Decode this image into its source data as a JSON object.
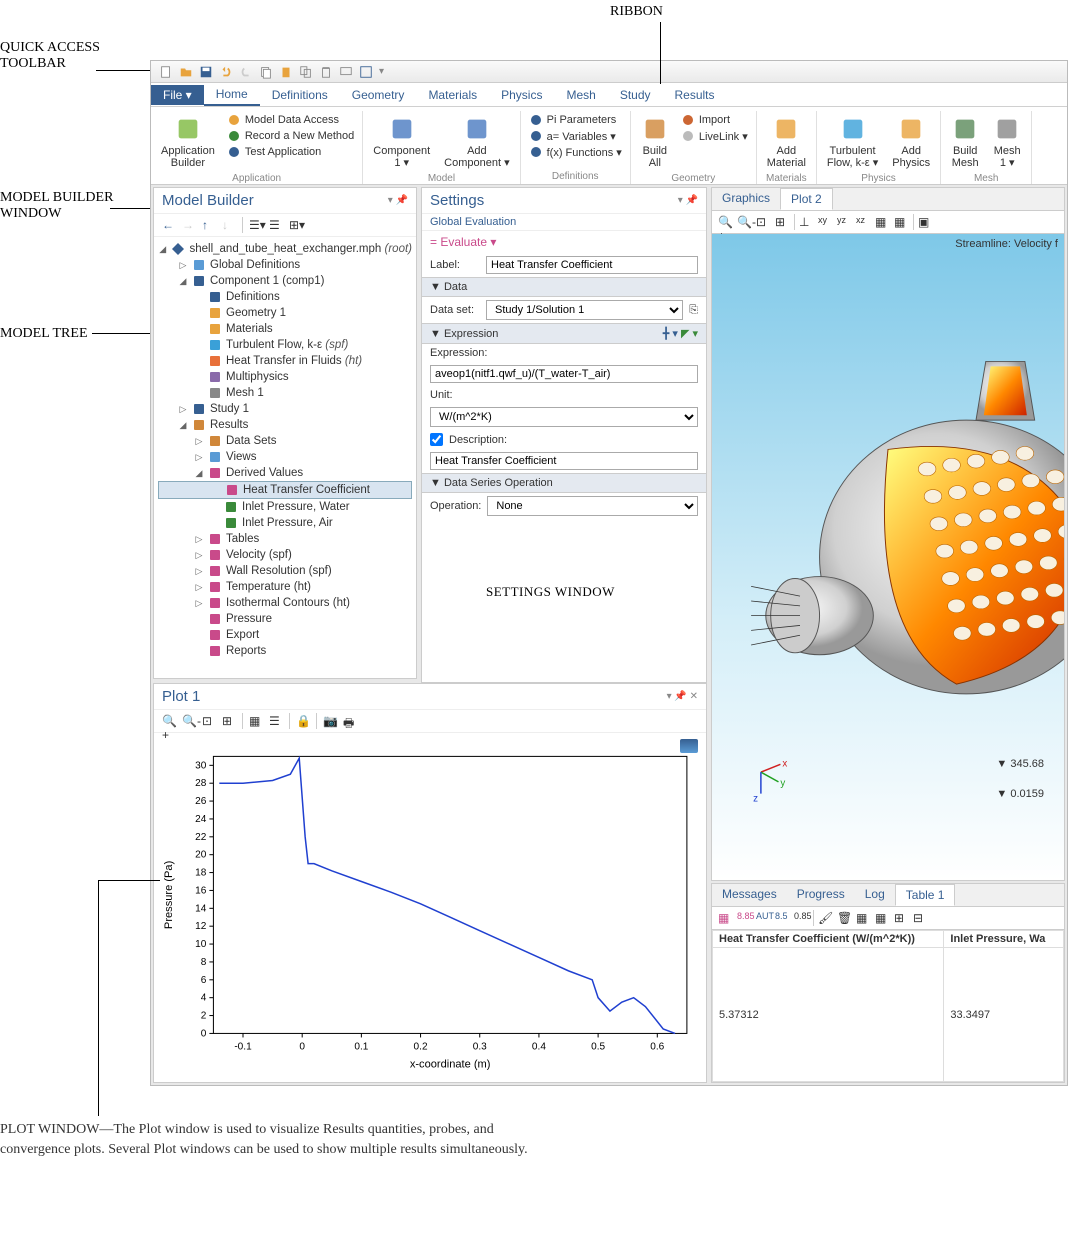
{
  "annotations": {
    "qat": "QUICK ACCESS\nTOOLBAR",
    "ribbon": "RIBBON",
    "model_builder": "MODEL BUILDER\nWINDOW",
    "model_tree": "MODEL TREE",
    "settings_window": "SETTINGS WINDOW",
    "plot_window": "PLOT WINDOW—The Plot window is used to visualize Results quantities, probes, and convergence plots. Several Plot windows can be used to show multiple results simultaneously."
  },
  "menubar": {
    "file": "File ▾",
    "tabs": [
      "Home",
      "Definitions",
      "Geometry",
      "Materials",
      "Physics",
      "Mesh",
      "Study",
      "Results"
    ],
    "active": "Home"
  },
  "ribbon": {
    "groups": [
      {
        "label": "Application",
        "big": [
          {
            "name": "app-builder",
            "text": "Application\nBuilder",
            "color": "#7db93f"
          }
        ],
        "small": [
          {
            "name": "model-data-access",
            "text": "Model Data Access",
            "color": "#e8a33d"
          },
          {
            "name": "record-method",
            "text": "Record a New Method",
            "color": "#3a8a3a"
          },
          {
            "name": "test-app",
            "text": "Test Application",
            "color": "#365f91"
          }
        ]
      },
      {
        "label": "Model",
        "big": [
          {
            "name": "component",
            "text": "Component\n1 ▾",
            "color": "#4a7ac0"
          },
          {
            "name": "add-component",
            "text": "Add\nComponent ▾",
            "color": "#4a7ac0"
          }
        ],
        "small": []
      },
      {
        "label": "Definitions",
        "big": [],
        "small": [
          {
            "name": "parameters",
            "text": "Pi Parameters",
            "color": "#365f91"
          },
          {
            "name": "variables",
            "text": "a= Variables ▾",
            "color": "#365f91"
          },
          {
            "name": "functions",
            "text": "f(x) Functions ▾",
            "color": "#365f91"
          }
        ]
      },
      {
        "label": "Geometry",
        "big": [
          {
            "name": "build-all",
            "text": "Build\nAll",
            "color": "#d0873a"
          }
        ],
        "small": [
          {
            "name": "import",
            "text": "Import",
            "color": "#cc6633"
          },
          {
            "name": "livelink",
            "text": "LiveLink ▾",
            "color": "#bbb"
          }
        ]
      },
      {
        "label": "Materials",
        "big": [
          {
            "name": "add-material",
            "text": "Add\nMaterial",
            "color": "#e8a33d"
          }
        ],
        "small": []
      },
      {
        "label": "Physics",
        "big": [
          {
            "name": "turbulent-flow",
            "text": "Turbulent\nFlow, k-ε ▾",
            "color": "#3aa0d8"
          },
          {
            "name": "add-physics",
            "text": "Add\nPhysics",
            "color": "#e8a33d"
          }
        ],
        "small": []
      },
      {
        "label": "Mesh",
        "big": [
          {
            "name": "build-mesh",
            "text": "Build\nMesh",
            "color": "#5a8a5a"
          },
          {
            "name": "mesh1",
            "text": "Mesh\n1 ▾",
            "color": "#888"
          }
        ],
        "small": []
      }
    ]
  },
  "model_builder": {
    "title": "Model Builder",
    "tree": {
      "root": "shell_and_tube_heat_exchanger.mph (root)",
      "items": [
        {
          "indent": 1,
          "exp": "▷",
          "icon": "#5a9bd5",
          "text": "Global Definitions"
        },
        {
          "indent": 1,
          "exp": "◢",
          "icon": "#365f91",
          "text": "Component 1 (comp1)"
        },
        {
          "indent": 2,
          "exp": "",
          "icon": "#365f91",
          "text": "Definitions"
        },
        {
          "indent": 2,
          "exp": "",
          "icon": "#e8a33d",
          "text": "Geometry 1"
        },
        {
          "indent": 2,
          "exp": "",
          "icon": "#e8a33d",
          "text": "Materials"
        },
        {
          "indent": 2,
          "exp": "",
          "icon": "#3aa0d8",
          "text": "Turbulent Flow, k-ε (spf)",
          "italic": true
        },
        {
          "indent": 2,
          "exp": "",
          "icon": "#e8703a",
          "text": "Heat Transfer in Fluids (ht)",
          "italic": true
        },
        {
          "indent": 2,
          "exp": "",
          "icon": "#8a6aaa",
          "text": "Multiphysics"
        },
        {
          "indent": 2,
          "exp": "",
          "icon": "#888",
          "text": "Mesh 1"
        },
        {
          "indent": 1,
          "exp": "▷",
          "icon": "#365f91",
          "text": "Study 1"
        },
        {
          "indent": 1,
          "exp": "◢",
          "icon": "#d0873a",
          "text": "Results"
        },
        {
          "indent": 2,
          "exp": "▷",
          "icon": "#d0873a",
          "text": "Data Sets"
        },
        {
          "indent": 2,
          "exp": "▷",
          "icon": "#5a9bd5",
          "text": "Views"
        },
        {
          "indent": 2,
          "exp": "◢",
          "icon": "#c94a8a",
          "text": "Derived Values"
        },
        {
          "indent": 3,
          "exp": "",
          "icon": "#c94a8a",
          "text": "Heat Transfer Coefficient",
          "selected": true
        },
        {
          "indent": 3,
          "exp": "",
          "icon": "#3a8a3a",
          "text": "Inlet Pressure, Water"
        },
        {
          "indent": 3,
          "exp": "",
          "icon": "#3a8a3a",
          "text": "Inlet Pressure, Air"
        },
        {
          "indent": 2,
          "exp": "▷",
          "icon": "#c94a8a",
          "text": "Tables"
        },
        {
          "indent": 2,
          "exp": "▷",
          "icon": "#c94a8a",
          "text": "Velocity (spf)"
        },
        {
          "indent": 2,
          "exp": "▷",
          "icon": "#c94a8a",
          "text": "Wall Resolution (spf)"
        },
        {
          "indent": 2,
          "exp": "▷",
          "icon": "#c94a8a",
          "text": "Temperature (ht)"
        },
        {
          "indent": 2,
          "exp": "▷",
          "icon": "#c94a8a",
          "text": "Isothermal Contours (ht)"
        },
        {
          "indent": 2,
          "exp": "",
          "icon": "#c94a8a",
          "text": "Pressure"
        },
        {
          "indent": 2,
          "exp": "",
          "icon": "#c94a8a",
          "text": "Export"
        },
        {
          "indent": 2,
          "exp": "",
          "icon": "#c94a8a",
          "text": "Reports"
        }
      ]
    }
  },
  "settings": {
    "title": "Settings",
    "subtitle": "Global Evaluation",
    "evaluate": "= Evaluate  ▾",
    "label_lbl": "Label:",
    "label_val": "Heat Transfer Coefficient",
    "data_head": "Data",
    "dataset_lbl": "Data set:",
    "dataset_val": "Study 1/Solution 1",
    "expr_head": "Expression",
    "expr_lbl": "Expression:",
    "expr_val": "aveop1(nitf1.qwf_u)/(T_water-T_air)",
    "unit_lbl": "Unit:",
    "unit_val": "W/(m^2*K)",
    "desc_lbl": "Description:",
    "desc_val": "Heat Transfer Coefficient",
    "series_head": "Data Series Operation",
    "op_lbl": "Operation:",
    "op_val": "None"
  },
  "graphics": {
    "tabs": [
      "Graphics",
      "Plot 2"
    ],
    "active": "Plot 2",
    "streamline_label": "Streamline: Velocity f",
    "val1": "▼ 345.68",
    "val2": "▼ 0.0159",
    "axes": {
      "x": "x",
      "y": "y",
      "z": "z"
    }
  },
  "plot1": {
    "title": "Plot 1",
    "xlabel": "x-coordinate (m)",
    "ylabel": "Pressure (Pa)",
    "xlim": [
      -0.15,
      0.65
    ],
    "ylim": [
      0,
      31
    ],
    "xticks": [
      -0.1,
      0,
      0.1,
      0.2,
      0.3,
      0.4,
      0.5,
      0.6
    ],
    "yticks": [
      0,
      2,
      4,
      6,
      8,
      10,
      12,
      14,
      16,
      18,
      20,
      22,
      24,
      26,
      28,
      30
    ],
    "line_color": "#2040d0",
    "background": "#ffffff",
    "data": [
      [
        -0.14,
        28
      ],
      [
        -0.1,
        28
      ],
      [
        -0.05,
        28.3
      ],
      [
        -0.02,
        29
      ],
      [
        -0.005,
        30.8
      ],
      [
        0.005,
        22
      ],
      [
        0.01,
        19
      ],
      [
        0.02,
        19
      ],
      [
        0.05,
        18.2
      ],
      [
        0.1,
        17
      ],
      [
        0.15,
        15.8
      ],
      [
        0.2,
        14.5
      ],
      [
        0.25,
        13
      ],
      [
        0.3,
        11.5
      ],
      [
        0.35,
        10
      ],
      [
        0.4,
        8.5
      ],
      [
        0.45,
        7
      ],
      [
        0.49,
        6
      ],
      [
        0.5,
        4
      ],
      [
        0.52,
        2.5
      ],
      [
        0.54,
        3.5
      ],
      [
        0.56,
        4
      ],
      [
        0.58,
        3
      ],
      [
        0.61,
        0.5
      ],
      [
        0.63,
        0
      ]
    ]
  },
  "bottom_tabs": {
    "tabs": [
      "Messages",
      "Progress",
      "Log",
      "Table 1"
    ],
    "active": "Table 1",
    "columns": [
      "Heat Transfer Coefficient (W/(m^2*K))",
      "Inlet Pressure, Wa"
    ],
    "rows": [
      [
        "5.37312",
        "33.3497"
      ]
    ]
  }
}
